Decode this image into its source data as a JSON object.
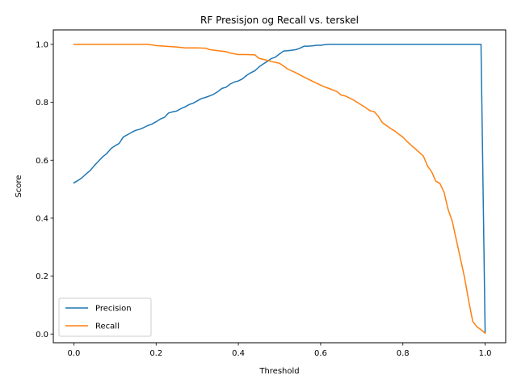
{
  "chart_data": {
    "type": "line",
    "title": "RF Presisjon og Recall vs. terskel",
    "xlabel": "Threshold",
    "ylabel": "Score",
    "xlim": [
      -0.05,
      1.05
    ],
    "ylim": [
      -0.03,
      1.05
    ],
    "xticks": [
      0.0,
      0.2,
      0.4,
      0.6,
      0.8,
      1.0
    ],
    "xtick_labels": [
      "0.0",
      "0.2",
      "0.4",
      "0.6",
      "0.8",
      "1.0"
    ],
    "yticks": [
      0.0,
      0.2,
      0.4,
      0.6,
      0.8,
      1.0
    ],
    "ytick_labels": [
      "0.0",
      "0.2",
      "0.4",
      "0.6",
      "0.8",
      "1.0"
    ],
    "grid": false,
    "legend_position": "lower-left",
    "series": [
      {
        "name": "Precision",
        "color": "#1f77b4",
        "x": [
          0.0,
          0.01,
          0.02,
          0.03,
          0.04,
          0.05,
          0.06,
          0.07,
          0.08,
          0.09,
          0.1,
          0.11,
          0.12,
          0.13,
          0.14,
          0.15,
          0.16,
          0.17,
          0.18,
          0.19,
          0.2,
          0.21,
          0.22,
          0.23,
          0.24,
          0.25,
          0.26,
          0.27,
          0.28,
          0.29,
          0.3,
          0.31,
          0.32,
          0.33,
          0.34,
          0.35,
          0.36,
          0.37,
          0.38,
          0.39,
          0.4,
          0.41,
          0.42,
          0.43,
          0.44,
          0.45,
          0.46,
          0.47,
          0.48,
          0.49,
          0.5,
          0.51,
          0.52,
          0.53,
          0.54,
          0.55,
          0.56,
          0.57,
          0.58,
          0.59,
          0.6,
          0.61,
          0.62,
          0.65,
          0.7,
          0.75,
          0.8,
          0.85,
          0.9,
          0.95,
          0.99,
          1.0
        ],
        "y": [
          0.522,
          0.53,
          0.54,
          0.553,
          0.565,
          0.582,
          0.597,
          0.612,
          0.623,
          0.64,
          0.65,
          0.658,
          0.68,
          0.688,
          0.696,
          0.703,
          0.707,
          0.713,
          0.72,
          0.725,
          0.733,
          0.742,
          0.748,
          0.763,
          0.767,
          0.77,
          0.778,
          0.784,
          0.792,
          0.797,
          0.805,
          0.813,
          0.817,
          0.822,
          0.828,
          0.837,
          0.848,
          0.852,
          0.863,
          0.87,
          0.874,
          0.881,
          0.893,
          0.902,
          0.909,
          0.922,
          0.932,
          0.941,
          0.951,
          0.956,
          0.967,
          0.977,
          0.978,
          0.98,
          0.982,
          0.987,
          0.994,
          0.994,
          0.995,
          0.997,
          0.997,
          0.999,
          1.0,
          1.0,
          1.0,
          1.0,
          1.0,
          1.0,
          1.0,
          1.0,
          1.0,
          0.005
        ]
      },
      {
        "name": "Recall",
        "color": "#ff7f0e",
        "x": [
          0.0,
          0.05,
          0.1,
          0.15,
          0.18,
          0.2,
          0.22,
          0.25,
          0.27,
          0.3,
          0.32,
          0.33,
          0.35,
          0.37,
          0.38,
          0.4,
          0.42,
          0.44,
          0.45,
          0.47,
          0.48,
          0.5,
          0.51,
          0.52,
          0.54,
          0.56,
          0.57,
          0.59,
          0.61,
          0.62,
          0.64,
          0.65,
          0.66,
          0.67,
          0.68,
          0.7,
          0.71,
          0.72,
          0.73,
          0.74,
          0.75,
          0.76,
          0.77,
          0.78,
          0.79,
          0.8,
          0.81,
          0.82,
          0.83,
          0.84,
          0.85,
          0.86,
          0.87,
          0.88,
          0.89,
          0.9,
          0.91,
          0.92,
          0.93,
          0.94,
          0.95,
          0.96,
          0.97,
          0.98,
          0.99,
          1.0
        ],
        "y": [
          1.0,
          1.0,
          1.0,
          1.0,
          1.0,
          0.996,
          0.994,
          0.991,
          0.988,
          0.988,
          0.987,
          0.982,
          0.978,
          0.975,
          0.97,
          0.965,
          0.965,
          0.964,
          0.952,
          0.945,
          0.941,
          0.935,
          0.925,
          0.915,
          0.902,
          0.887,
          0.88,
          0.866,
          0.853,
          0.848,
          0.837,
          0.825,
          0.822,
          0.815,
          0.808,
          0.79,
          0.781,
          0.771,
          0.768,
          0.752,
          0.73,
          0.72,
          0.71,
          0.701,
          0.69,
          0.68,
          0.665,
          0.652,
          0.64,
          0.627,
          0.614,
          0.58,
          0.56,
          0.528,
          0.52,
          0.49,
          0.43,
          0.39,
          0.325,
          0.26,
          0.195,
          0.115,
          0.043,
          0.025,
          0.015,
          0.003
        ]
      }
    ]
  }
}
